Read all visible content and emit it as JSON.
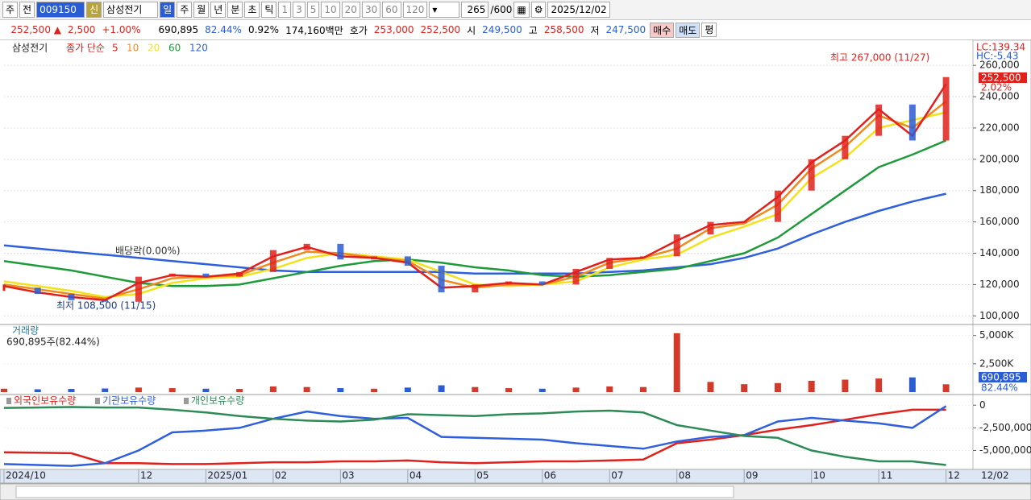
{
  "toolbar": {
    "items": [
      "주",
      "전",
      "009150",
      "신",
      "삼성전기",
      "일",
      "주",
      "월",
      "년",
      "분",
      "초",
      "틱",
      "1",
      "3",
      "5",
      "10",
      "20",
      "30",
      "60",
      "120",
      "265",
      "/600",
      "2025/12/02"
    ]
  },
  "info_bar": [
    "252,500 ▲",
    "2,500",
    "+1.00%",
    "690,895",
    "82.44%",
    "0.92%",
    "174,160백만",
    "호가",
    "253,000",
    "252,500",
    "시",
    "249,500",
    "고",
    "258,500",
    "저",
    "247,500",
    "매수",
    "매도",
    "평"
  ],
  "chart_data": [
    {
      "type": "price",
      "name": "삼성전기",
      "legend_title": "종가 단순",
      "x": [
        0,
        1,
        2,
        3,
        4,
        5,
        6,
        7,
        8,
        9,
        10,
        11,
        12,
        13,
        14,
        15,
        16,
        17,
        18,
        19,
        20,
        21,
        22,
        23,
        24,
        25,
        26,
        27,
        28
      ],
      "close": [
        118000,
        114000,
        110000,
        109000,
        125000,
        127000,
        125000,
        128000,
        142000,
        146000,
        136000,
        138000,
        132000,
        115000,
        120000,
        122000,
        120000,
        130000,
        137000,
        138000,
        152000,
        160000,
        160000,
        180000,
        200000,
        215000,
        235000,
        212000,
        252500
      ],
      "up_color": "#e0201b",
      "down_color": "#2a5cd4",
      "series": [
        {
          "name": "5",
          "color": "#e0201b",
          "values": [
            119000,
            115000,
            112000,
            110000,
            121000,
            126000,
            125000,
            127000,
            138000,
            144000,
            138000,
            137000,
            134000,
            118000,
            119000,
            121000,
            120000,
            128000,
            136000,
            137000,
            148000,
            158000,
            160000,
            176000,
            198000,
            212000,
            232000,
            215000,
            248000
          ]
        },
        {
          "name": "10",
          "color": "#f08a1c",
          "values": [
            120000,
            117000,
            114000,
            111000,
            117000,
            124000,
            125000,
            126000,
            134000,
            141000,
            140000,
            137000,
            135000,
            123000,
            118000,
            120000,
            120000,
            125000,
            134000,
            137000,
            143000,
            156000,
            159000,
            171000,
            194000,
            208000,
            228000,
            220000,
            237000
          ]
        },
        {
          "name": "20",
          "color": "#f2e21a",
          "values": [
            122000,
            119000,
            116000,
            112000,
            114000,
            121000,
            124000,
            125000,
            130000,
            137000,
            140000,
            138000,
            136000,
            128000,
            120000,
            119000,
            120000,
            122000,
            131000,
            136000,
            139000,
            150000,
            157000,
            165000,
            188000,
            201000,
            220000,
            225000,
            230000
          ]
        },
        {
          "name": "60",
          "color": "#1f9a3a",
          "values": [
            135000,
            132000,
            129000,
            125000,
            121000,
            119000,
            119000,
            120000,
            124000,
            128000,
            132000,
            135000,
            136000,
            134000,
            131000,
            129000,
            126000,
            125000,
            126000,
            128000,
            130000,
            135000,
            140000,
            150000,
            165000,
            180000,
            195000,
            203000,
            212000
          ]
        },
        {
          "name": "120",
          "color": "#2f5fdc",
          "values": [
            145000,
            143000,
            141000,
            139000,
            137000,
            135000,
            133000,
            131000,
            129000,
            128000,
            128000,
            128000,
            128000,
            128000,
            127000,
            127000,
            127000,
            127000,
            128000,
            129000,
            131000,
            133000,
            137000,
            143000,
            152000,
            160000,
            167000,
            173000,
            178000
          ]
        }
      ],
      "xlim": [
        0,
        28.8
      ],
      "ylim": [
        95000,
        275000
      ],
      "yticks": [
        {
          "value": 100000,
          "label": "100,000"
        },
        {
          "value": 120000,
          "label": "120,000"
        },
        {
          "value": 140000,
          "label": "140,000"
        },
        {
          "value": 160000,
          "label": "160,000"
        },
        {
          "value": 180000,
          "label": "180,000"
        },
        {
          "value": 200000,
          "label": "200,000"
        },
        {
          "value": 220000,
          "label": "220,000"
        },
        {
          "value": 240000,
          "label": "240,000"
        },
        {
          "value": 260000,
          "label": "260,000"
        }
      ],
      "grid": true,
      "annotations": {
        "high": "최고 267,000 (11/27)",
        "low": "최저 108,500 (11/15)",
        "dividend": "배당락(0.00%)",
        "lc": "LC:139.34",
        "hc": "HC:-5.43",
        "price_tag": "252,500",
        "change_tag": "2.02%"
      }
    },
    {
      "type": "volume",
      "title": "거래량",
      "subtitle": "690,895주(82.44%)",
      "x": [
        0,
        1,
        2,
        3,
        4,
        5,
        6,
        7,
        8,
        9,
        10,
        11,
        12,
        13,
        14,
        15,
        16,
        17,
        18,
        19,
        20,
        21,
        22,
        23,
        24,
        25,
        26,
        27,
        28
      ],
      "values": [
        300000,
        250000,
        280000,
        320000,
        400000,
        350000,
        300000,
        280000,
        500000,
        450000,
        350000,
        300000,
        400000,
        600000,
        450000,
        350000,
        300000,
        400000,
        500000,
        450000,
        5200000,
        900000,
        700000,
        800000,
        1000000,
        1100000,
        1200000,
        1300000,
        690895
      ],
      "color": "#d23a2a",
      "xlim": [
        0,
        28.8
      ],
      "ylim": [
        0,
        5900000
      ],
      "yticks": [
        {
          "value": 2500000,
          "label": "2,500K"
        },
        {
          "value": 5000000,
          "label": "5,000K"
        }
      ],
      "annotations": {
        "volume_tag": "690,895",
        "ratio_tag": "82.44%"
      }
    },
    {
      "type": "line",
      "x": [
        0,
        1,
        2,
        3,
        4,
        5,
        6,
        7,
        8,
        9,
        10,
        11,
        12,
        13,
        14,
        15,
        16,
        17,
        18,
        19,
        20,
        21,
        22,
        23,
        24,
        25,
        26,
        27,
        28
      ],
      "series": [
        {
          "name": "외국인보유수량",
          "color": "#e0201b",
          "values": [
            -5200000,
            -5250000,
            -5300000,
            -6400000,
            -6400000,
            -6500000,
            -6500000,
            -6400000,
            -6300000,
            -6300000,
            -6200000,
            -6200000,
            -6100000,
            -6300000,
            -6400000,
            -6300000,
            -6200000,
            -6200000,
            -6100000,
            -6000000,
            -4200000,
            -3800000,
            -3300000,
            -2700000,
            -2200000,
            -1600000,
            -1000000,
            -500000,
            -500000
          ]
        },
        {
          "name": "기관보유수량",
          "color": "#2f5fdc",
          "values": [
            -6500000,
            -6600000,
            -6700000,
            -6400000,
            -5000000,
            -3000000,
            -2800000,
            -2500000,
            -1500000,
            -700000,
            -1200000,
            -1500000,
            -1400000,
            -3500000,
            -3600000,
            -3700000,
            -3800000,
            -4200000,
            -4500000,
            -4800000,
            -4000000,
            -3500000,
            -3300000,
            -1800000,
            -1400000,
            -1700000,
            -2000000,
            -2500000,
            -100000
          ]
        },
        {
          "name": "개인보유수량",
          "color": "#2e8b57",
          "values": [
            -300000,
            -250000,
            -200000,
            -250000,
            -250000,
            -500000,
            -800000,
            -1200000,
            -1500000,
            -1700000,
            -1800000,
            -1600000,
            -1000000,
            -1100000,
            -1200000,
            -1000000,
            -900000,
            -700000,
            -600000,
            -800000,
            -2200000,
            -2800000,
            -3400000,
            -3600000,
            -5000000,
            -5700000,
            -6200000,
            -6200000,
            -6600000
          ]
        }
      ],
      "xlim": [
        0,
        28.8
      ],
      "ylim": [
        -7000000,
        1000000
      ],
      "yticks": [
        0,
        {
          "value": -2500000,
          "label": "-2,500,000"
        },
        {
          "value": -5000000,
          "label": "-5,000,000"
        }
      ],
      "xticks": [
        {
          "value": 0,
          "label": "2024/10"
        },
        {
          "value": 4,
          "label": "12"
        },
        {
          "value": 6,
          "label": "2025/01"
        },
        {
          "value": 8,
          "label": "02"
        },
        {
          "value": 10,
          "label": "03"
        },
        {
          "value": 12,
          "label": "04"
        },
        {
          "value": 14,
          "label": "05"
        },
        {
          "value": 16,
          "label": "06"
        },
        {
          "value": 18,
          "label": "07"
        },
        {
          "value": 20,
          "label": "08"
        },
        {
          "value": 22,
          "label": "09"
        },
        {
          "value": 24,
          "label": "10"
        },
        {
          "value": 26,
          "label": "11"
        },
        {
          "value": 28,
          "label": "12"
        }
      ],
      "end_date": "12/02"
    }
  ]
}
